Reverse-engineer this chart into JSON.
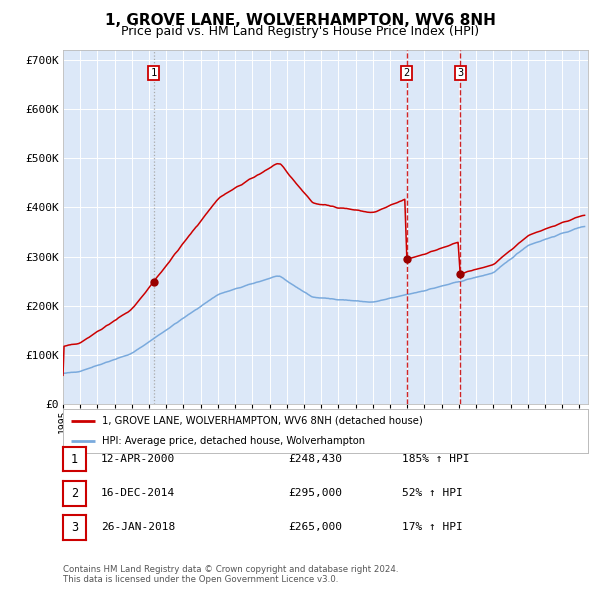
{
  "title": "1, GROVE LANE, WOLVERHAMPTON, WV6 8NH",
  "subtitle": "Price paid vs. HM Land Registry's House Price Index (HPI)",
  "title_fontsize": 11,
  "subtitle_fontsize": 9,
  "background_color": "#dce8f8",
  "ylim": [
    0,
    720000
  ],
  "yticks": [
    0,
    100000,
    200000,
    300000,
    400000,
    500000,
    600000,
    700000
  ],
  "ytick_labels": [
    "£0",
    "£100K",
    "£200K",
    "£300K",
    "£400K",
    "£500K",
    "£600K",
    "£700K"
  ],
  "xlim_start": 1995.0,
  "xlim_end": 2025.5,
  "red_line_color": "#cc0000",
  "blue_line_color": "#7aaadd",
  "marker_color": "#990000",
  "vline1_x": 2000.27,
  "vline2_x": 2014.96,
  "vline3_x": 2018.07,
  "marker1_x": 2000.27,
  "marker1_y": 248430,
  "marker2_x": 2014.96,
  "marker2_y": 295000,
  "marker3_x": 2018.07,
  "marker3_y": 265000,
  "legend_label_red": "1, GROVE LANE, WOLVERHAMPTON, WV6 8NH (detached house)",
  "legend_label_blue": "HPI: Average price, detached house, Wolverhampton",
  "table_rows": [
    {
      "num": "1",
      "date": "12-APR-2000",
      "price": "£248,430",
      "pct": "185% ↑ HPI"
    },
    {
      "num": "2",
      "date": "16-DEC-2014",
      "price": "£295,000",
      "pct": "52% ↑ HPI"
    },
    {
      "num": "3",
      "date": "26-JAN-2018",
      "price": "£265,000",
      "pct": "17% ↑ HPI"
    }
  ],
  "footnote": "Contains HM Land Registry data © Crown copyright and database right 2024.\nThis data is licensed under the Open Government Licence v3.0."
}
